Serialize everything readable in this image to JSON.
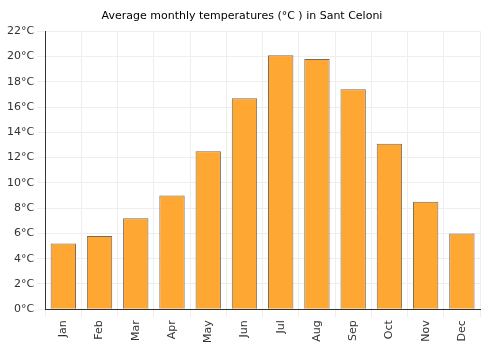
{
  "chart_data": {
    "type": "bar",
    "title": "Average monthly temperatures (°C ) in Sant Celoni",
    "categories": [
      "Jan",
      "Feb",
      "Mar",
      "Apr",
      "May",
      "Jun",
      "Jul",
      "Aug",
      "Sep",
      "Oct",
      "Nov",
      "Dec"
    ],
    "values": [
      5.2,
      5.8,
      7.2,
      9.0,
      12.5,
      16.7,
      20.1,
      19.8,
      17.4,
      13.1,
      8.5,
      6.0
    ],
    "color": "#ffa733",
    "ylim": [
      0,
      22
    ],
    "yticks": [
      {
        "value": 0,
        "label": "0°C"
      },
      {
        "value": 2,
        "label": "2°C"
      },
      {
        "value": 4,
        "label": "4°C"
      },
      {
        "value": 6,
        "label": "6°C"
      },
      {
        "value": 8,
        "label": "8°C"
      },
      {
        "value": 10,
        "label": "10°C"
      },
      {
        "value": 12,
        "label": "12°C"
      },
      {
        "value": 14,
        "label": "14°C"
      },
      {
        "value": 16,
        "label": "16°C"
      },
      {
        "value": 18,
        "label": "18°C"
      },
      {
        "value": 20,
        "label": "20°C"
      },
      {
        "value": 22,
        "label": "22°C"
      }
    ],
    "grid": true
  }
}
